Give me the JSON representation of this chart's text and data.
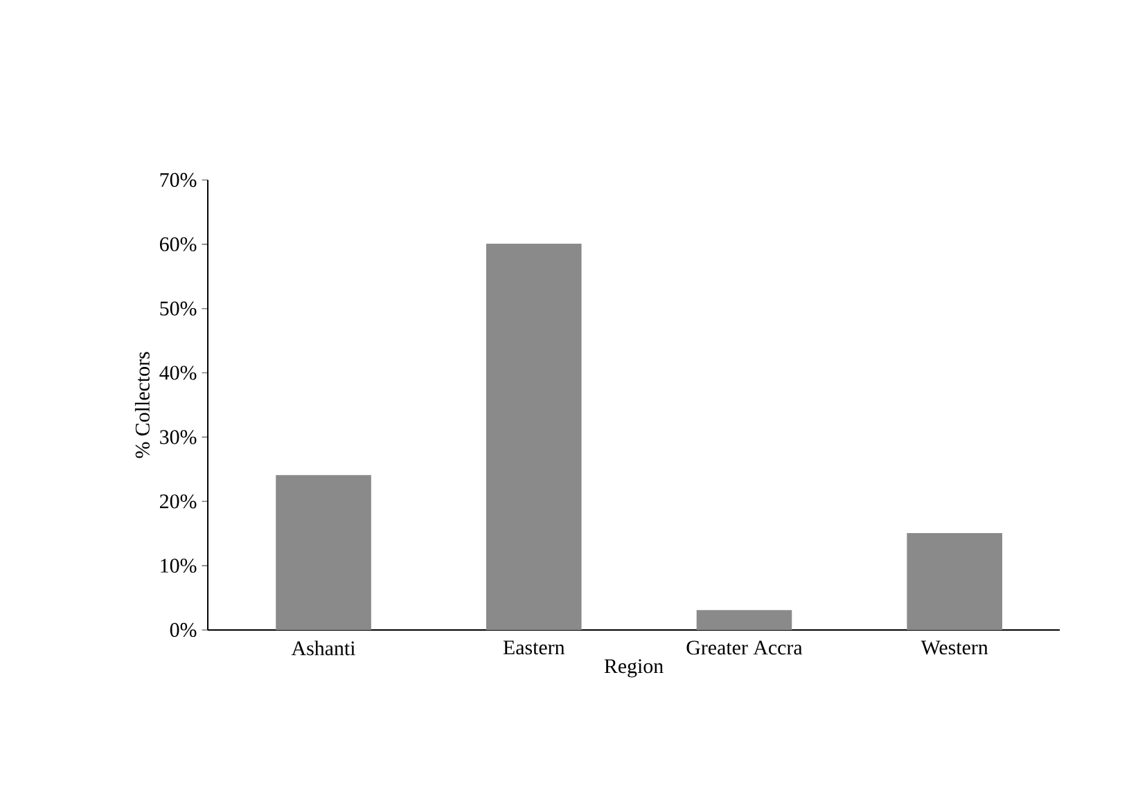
{
  "chart_data": {
    "type": "bar",
    "xlabel": "Region",
    "ylabel": "% Collectors",
    "categories": [
      "Ashanti",
      "Eastern",
      "Greater Accra",
      "Western"
    ],
    "values": [
      24,
      60,
      3,
      15
    ],
    "color": "#8a8a8a",
    "ylim": [
      0,
      70
    ],
    "yticks": [
      {
        "value": 0,
        "label": "0%"
      },
      {
        "value": 10,
        "label": "10%"
      },
      {
        "value": 20,
        "label": "20%"
      },
      {
        "value": 30,
        "label": "30%"
      },
      {
        "value": 40,
        "label": "40%"
      },
      {
        "value": 50,
        "label": "50%"
      },
      {
        "value": 60,
        "label": "60%"
      },
      {
        "value": 70,
        "label": "70%"
      }
    ]
  }
}
